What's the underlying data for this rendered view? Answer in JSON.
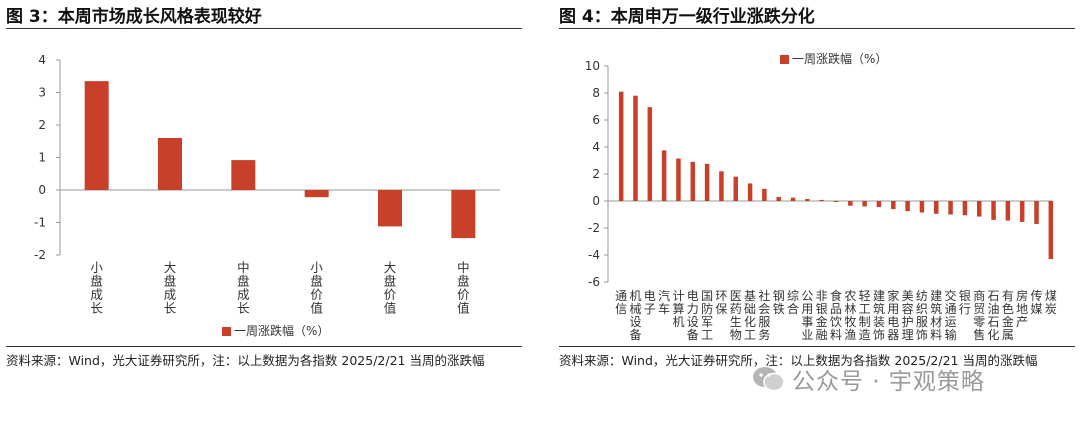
{
  "left": {
    "title": "图 3：本周市场成长风格表现较好",
    "source": "资料来源：Wind，光大证券研究所，注：以上数据为各指数 2025/2/21 当周的涨跌幅"
  },
  "right": {
    "title": "图 4：本周申万一级行业涨跌分化",
    "source": "资料来源：Wind，光大证券研究所，注：以上数据为各指数 2025/2/21 当周的涨跌幅"
  },
  "watermark": {
    "text": "公众号 · 宇观策略",
    "icon": "wechat-icon"
  },
  "colors": {
    "bar": "#C8402A",
    "axis": "#999999",
    "text": "#333333"
  },
  "chart_data": [
    {
      "type": "bar",
      "categories": [
        "小盘成长",
        "大盘成长",
        "中盘成长",
        "小盘价值",
        "大盘价值",
        "中盘价值"
      ],
      "series": [
        {
          "name": "一周涨跌幅（%）",
          "values": [
            3.35,
            1.6,
            0.92,
            -0.22,
            -1.12,
            -1.48
          ]
        }
      ],
      "ylim": [
        -2,
        4
      ],
      "yticks": [
        "4",
        "3",
        "2",
        "1",
        "0",
        "-1",
        "-2"
      ],
      "legend": "bottom",
      "grid": false
    },
    {
      "type": "bar",
      "categories": [
        "通信",
        "机械设备",
        "电子",
        "汽车",
        "计算机",
        "电力设备",
        "国防军工",
        "环保",
        "医药生物",
        "基础化工",
        "社会服务",
        "钢铁",
        "综合",
        "公用事业",
        "非银金融",
        "食品饮料",
        "农林牧渔",
        "轻工制造",
        "建筑装饰",
        "家用电器",
        "美容护理",
        "纺织服饰",
        "建筑材料",
        "交通运输",
        "银行",
        "商贸零售",
        "石油石化",
        "有色金属",
        "房地产",
        "传媒",
        "煤炭"
      ],
      "series": [
        {
          "name": "一周涨跌幅（%）",
          "values": [
            8.1,
            7.8,
            6.95,
            3.75,
            3.15,
            2.9,
            2.75,
            2.2,
            1.8,
            1.3,
            0.9,
            0.3,
            0.25,
            0.15,
            0.08,
            -0.05,
            -0.35,
            -0.4,
            -0.45,
            -0.6,
            -0.75,
            -0.85,
            -0.95,
            -1.0,
            -1.05,
            -1.15,
            -1.4,
            -1.45,
            -1.55,
            -1.7,
            -4.3
          ]
        }
      ],
      "ylim": [
        -6,
        10
      ],
      "yticks": [
        "10",
        "8",
        "6",
        "4",
        "2",
        "0",
        "-2",
        "-4",
        "-6"
      ],
      "legend": "top",
      "grid": false
    }
  ]
}
